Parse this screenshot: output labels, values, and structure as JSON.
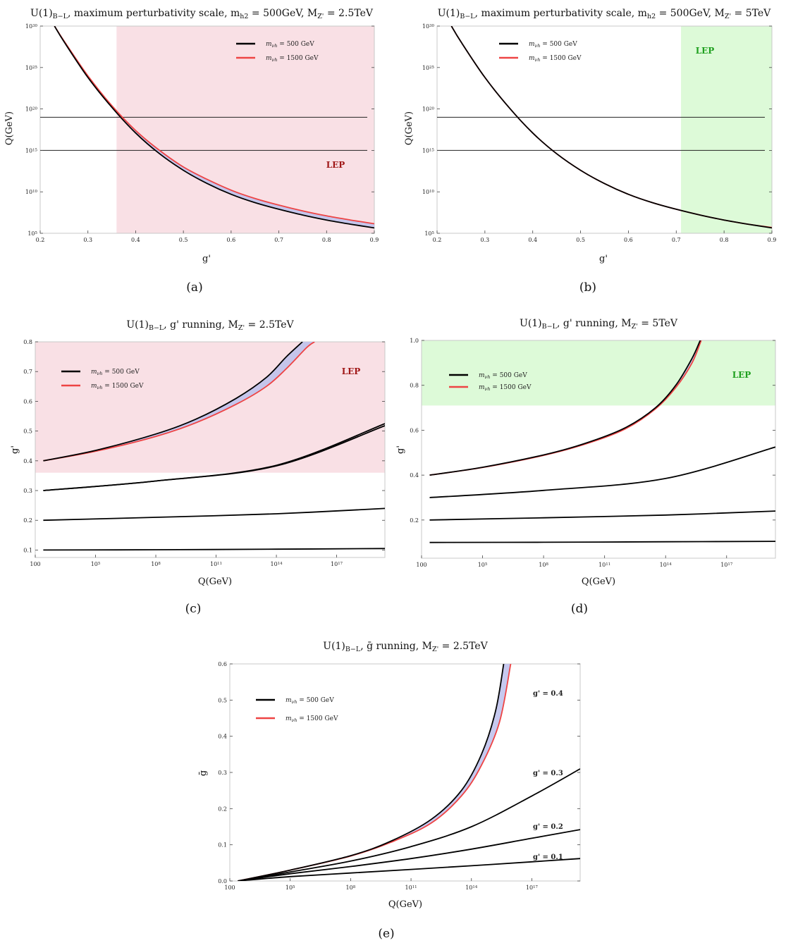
{
  "legend": {
    "entries": [
      "m_{ν_h} = 500 GeV",
      "m_{ν_h} = 1500 GeV"
    ],
    "colors": [
      "#000000",
      "#ee4444"
    ]
  },
  "colors": {
    "lep_red_fill": "#f9e0e5",
    "lep_red_text": "#a01818",
    "lep_green_fill": "#ddfad8",
    "lep_green_text": "#1fa01f",
    "band_fill": "#bcc0ec"
  },
  "chart_data": [
    {
      "id": "a",
      "type": "line",
      "title": "U(1)_{B−L}, maximum perturbativity scale, m_{h_2} = 500GeV, M_{Z'} = 2.5TeV",
      "subcaption": "(a)",
      "xlabel": "g'",
      "ylabel": "Q(GeV)",
      "xlim": [
        0.2,
        0.9
      ],
      "ylim_log10": [
        5,
        30
      ],
      "xticks": [
        "0.2",
        "0.3",
        "0.4",
        "0.5",
        "0.6",
        "0.7",
        "0.8",
        "0.9"
      ],
      "yticks": [
        "10^5",
        "10^10",
        "10^15",
        "10^20",
        "10^25",
        "10^30"
      ],
      "hlines_log10": [
        15,
        19
      ],
      "region": {
        "label": "LEP",
        "axis": "x",
        "from": 0.36,
        "to": 0.9,
        "color": "red"
      },
      "series": [
        {
          "name": "m_{ν_h} = 500 GeV",
          "x": [
            0.23,
            0.25,
            0.3,
            0.35,
            0.4,
            0.45,
            0.5,
            0.55,
            0.6,
            0.65,
            0.7,
            0.75,
            0.8,
            0.85,
            0.9
          ],
          "log10_y": [
            30.0,
            28.1,
            23.8,
            20.2,
            17.1,
            14.6,
            12.6,
            11.0,
            9.7,
            8.7,
            7.9,
            7.2,
            6.6,
            6.1,
            5.65
          ]
        },
        {
          "name": "m_{ν_h} = 1500 GeV",
          "x": [
            0.23,
            0.25,
            0.3,
            0.35,
            0.4,
            0.45,
            0.5,
            0.55,
            0.6,
            0.65,
            0.7,
            0.75,
            0.8,
            0.85,
            0.9
          ],
          "log10_y": [
            30.0,
            28.2,
            24.0,
            20.4,
            17.4,
            15.0,
            13.0,
            11.5,
            10.2,
            9.2,
            8.4,
            7.7,
            7.1,
            6.6,
            6.15
          ]
        }
      ]
    },
    {
      "id": "b",
      "type": "line",
      "title": "U(1)_{B−L}, maximum perturbativity scale, m_{h_2} = 500GeV, M_{Z'} = 5TeV",
      "subcaption": "(b)",
      "xlabel": "g'",
      "ylabel": "Q(GeV)",
      "xlim": [
        0.2,
        0.9
      ],
      "ylim_log10": [
        5,
        30
      ],
      "xticks": [
        "0.2",
        "0.3",
        "0.4",
        "0.5",
        "0.6",
        "0.7",
        "0.8",
        "0.9"
      ],
      "yticks": [
        "10^5",
        "10^10",
        "10^15",
        "10^20",
        "10^25",
        "10^30"
      ],
      "hlines_log10": [
        15,
        19
      ],
      "region": {
        "label": "LEP",
        "axis": "x",
        "from": 0.71,
        "to": 0.9,
        "color": "green"
      },
      "series": [
        {
          "name": "m_{ν_h} = 500 GeV",
          "x": [
            0.23,
            0.25,
            0.3,
            0.35,
            0.4,
            0.45,
            0.5,
            0.55,
            0.6,
            0.65,
            0.7,
            0.75,
            0.8,
            0.85,
            0.9
          ],
          "log10_y": [
            30.0,
            28.1,
            23.8,
            20.2,
            17.1,
            14.6,
            12.6,
            11.0,
            9.7,
            8.7,
            7.9,
            7.2,
            6.6,
            6.1,
            5.65
          ]
        },
        {
          "name": "m_{ν_h} = 1500 GeV",
          "x": [
            0.23,
            0.25,
            0.3,
            0.35,
            0.4,
            0.45,
            0.5,
            0.55,
            0.6,
            0.65,
            0.7,
            0.75,
            0.8,
            0.85,
            0.9
          ],
          "log10_y": [
            30.0,
            28.1,
            23.8,
            20.2,
            17.1,
            14.6,
            12.6,
            11.0,
            9.7,
            8.7,
            7.9,
            7.2,
            6.6,
            6.1,
            5.7
          ]
        }
      ]
    },
    {
      "id": "c",
      "type": "line",
      "title": "U(1)_{B−L}, g' running, M_{Z'} = 2.5TeV",
      "subcaption": "(c)",
      "xlabel": "Q(GeV)",
      "ylabel": "g'",
      "xlim_log10": [
        2,
        19.4
      ],
      "ylim": [
        0.075,
        0.8
      ],
      "xticks": [
        "100",
        "10^5",
        "10^8",
        "10^11",
        "10^14",
        "10^17"
      ],
      "yticks": [
        "0.1",
        "0.2",
        "0.3",
        "0.4",
        "0.5",
        "0.6",
        "0.7",
        "0.8"
      ],
      "region": {
        "label": "LEP",
        "axis": "y",
        "from": 0.36,
        "to": 0.8,
        "color": "red"
      },
      "series": [
        {
          "name": "m_{ν_h} = 500 GeV",
          "log10_x": [
            2.4,
            5,
            8,
            10,
            12,
            13.5,
            14.5,
            15.3
          ],
          "y": [
            0.4,
            0.435,
            0.49,
            0.54,
            0.61,
            0.68,
            0.75,
            0.8
          ]
        },
        {
          "name": "m_{ν_h} = 1500 GeV",
          "log10_x": [
            2.4,
            5,
            8,
            10,
            12,
            13.5,
            14.5,
            15.5,
            15.9
          ],
          "y": [
            0.4,
            0.432,
            0.482,
            0.528,
            0.59,
            0.65,
            0.71,
            0.78,
            0.8
          ]
        },
        {
          "name": "",
          "log10_x": [
            2.4,
            8,
            14,
            19.4
          ],
          "y": [
            0.3,
            0.332,
            0.385,
            0.525
          ]
        },
        {
          "name": "",
          "log10_x": [
            2.4,
            8,
            14,
            19.4
          ],
          "y": [
            0.3,
            0.332,
            0.383,
            0.518
          ]
        },
        {
          "name": "",
          "log10_x": [
            2.4,
            8,
            14,
            19.4
          ],
          "y": [
            0.2,
            0.21,
            0.222,
            0.24
          ]
        },
        {
          "name": "",
          "log10_x": [
            2.4,
            8,
            14,
            19.4
          ],
          "y": [
            0.1,
            0.101,
            0.103,
            0.105
          ]
        }
      ]
    },
    {
      "id": "d",
      "type": "line",
      "title": "U(1)_{B−L}, g' running, M_{Z'} = 5TeV",
      "subcaption": "(d)",
      "xlabel": "Q(GeV)",
      "ylabel": "g'",
      "xlim_log10": [
        2,
        19.4
      ],
      "ylim": [
        0.03,
        1.0
      ],
      "xticks": [
        "100",
        "10^5",
        "10^8",
        "10^11",
        "10^14",
        "10^17"
      ],
      "yticks": [
        "0.2",
        "0.4",
        "0.6",
        "0.8",
        "1.0"
      ],
      "region": {
        "label": "LEP",
        "axis": "y",
        "from": 0.71,
        "to": 1.0,
        "color": "green"
      },
      "series": [
        {
          "name": "m_{ν_h} = 500 GeV",
          "log10_x": [
            2.4,
            5,
            8,
            10,
            12,
            13.5,
            14.5,
            15.3,
            15.7
          ],
          "y": [
            0.4,
            0.435,
            0.49,
            0.54,
            0.61,
            0.7,
            0.8,
            0.92,
            1.0
          ]
        },
        {
          "name": "m_{ν_h} = 1500 GeV",
          "log10_x": [
            2.4,
            5,
            8,
            10,
            12,
            13.5,
            14.5,
            15.3,
            15.75
          ],
          "y": [
            0.4,
            0.434,
            0.488,
            0.537,
            0.605,
            0.695,
            0.79,
            0.9,
            1.0
          ]
        },
        {
          "name": "",
          "log10_x": [
            2.4,
            8,
            14,
            19.4
          ],
          "y": [
            0.3,
            0.332,
            0.385,
            0.525
          ]
        },
        {
          "name": "",
          "log10_x": [
            2.4,
            8,
            14,
            19.4
          ],
          "y": [
            0.2,
            0.21,
            0.222,
            0.24
          ]
        },
        {
          "name": "",
          "log10_x": [
            2.4,
            8,
            14,
            19.4
          ],
          "y": [
            0.1,
            0.101,
            0.103,
            0.105
          ]
        }
      ]
    },
    {
      "id": "e",
      "type": "line",
      "title": "U(1)_{B−L}, ḡ running, M_{Z'} = 2.5TeV",
      "subcaption": "(e)",
      "xlabel": "Q(GeV)",
      "ylabel": "ḡ",
      "xlim_log10": [
        2,
        19.4
      ],
      "ylim": [
        0.0,
        0.6
      ],
      "xticks": [
        "100",
        "10^5",
        "10^8",
        "10^11",
        "10^14",
        "10^17"
      ],
      "yticks": [
        "0.0",
        "0.1",
        "0.2",
        "0.3",
        "0.4",
        "0.5",
        "0.6"
      ],
      "curve_labels": [
        "g' = 0.4",
        "g' = 0.3",
        "g' = 0.2",
        "g' = 0.1"
      ],
      "series": [
        {
          "name": "m_{ν_h} = 500 GeV",
          "log10_x": [
            2.4,
            5,
            8,
            10,
            12,
            13.5,
            14.5,
            15.2,
            15.6
          ],
          "y": [
            0.0,
            0.03,
            0.07,
            0.11,
            0.17,
            0.25,
            0.35,
            0.47,
            0.6
          ]
        },
        {
          "name": "m_{ν_h} = 1500 GeV",
          "log10_x": [
            2.4,
            5,
            8,
            10,
            12,
            13.5,
            14.5,
            15.4,
            15.95
          ],
          "y": [
            0.0,
            0.03,
            0.069,
            0.107,
            0.16,
            0.235,
            0.32,
            0.44,
            0.6
          ]
        },
        {
          "name": "",
          "log10_x": [
            2.4,
            5,
            8,
            11,
            14,
            17,
            19.4
          ],
          "y": [
            0.0,
            0.025,
            0.055,
            0.095,
            0.15,
            0.235,
            0.31
          ]
        },
        {
          "name": "",
          "log10_x": [
            2.4,
            5,
            8,
            11,
            14,
            17,
            19.4
          ],
          "y": [
            0.0,
            0.02,
            0.04,
            0.062,
            0.088,
            0.118,
            0.142
          ]
        },
        {
          "name": "",
          "log10_x": [
            2.4,
            5,
            8,
            11,
            14,
            17,
            19.4
          ],
          "y": [
            0.0,
            0.012,
            0.022,
            0.032,
            0.042,
            0.053,
            0.062
          ]
        }
      ]
    }
  ]
}
